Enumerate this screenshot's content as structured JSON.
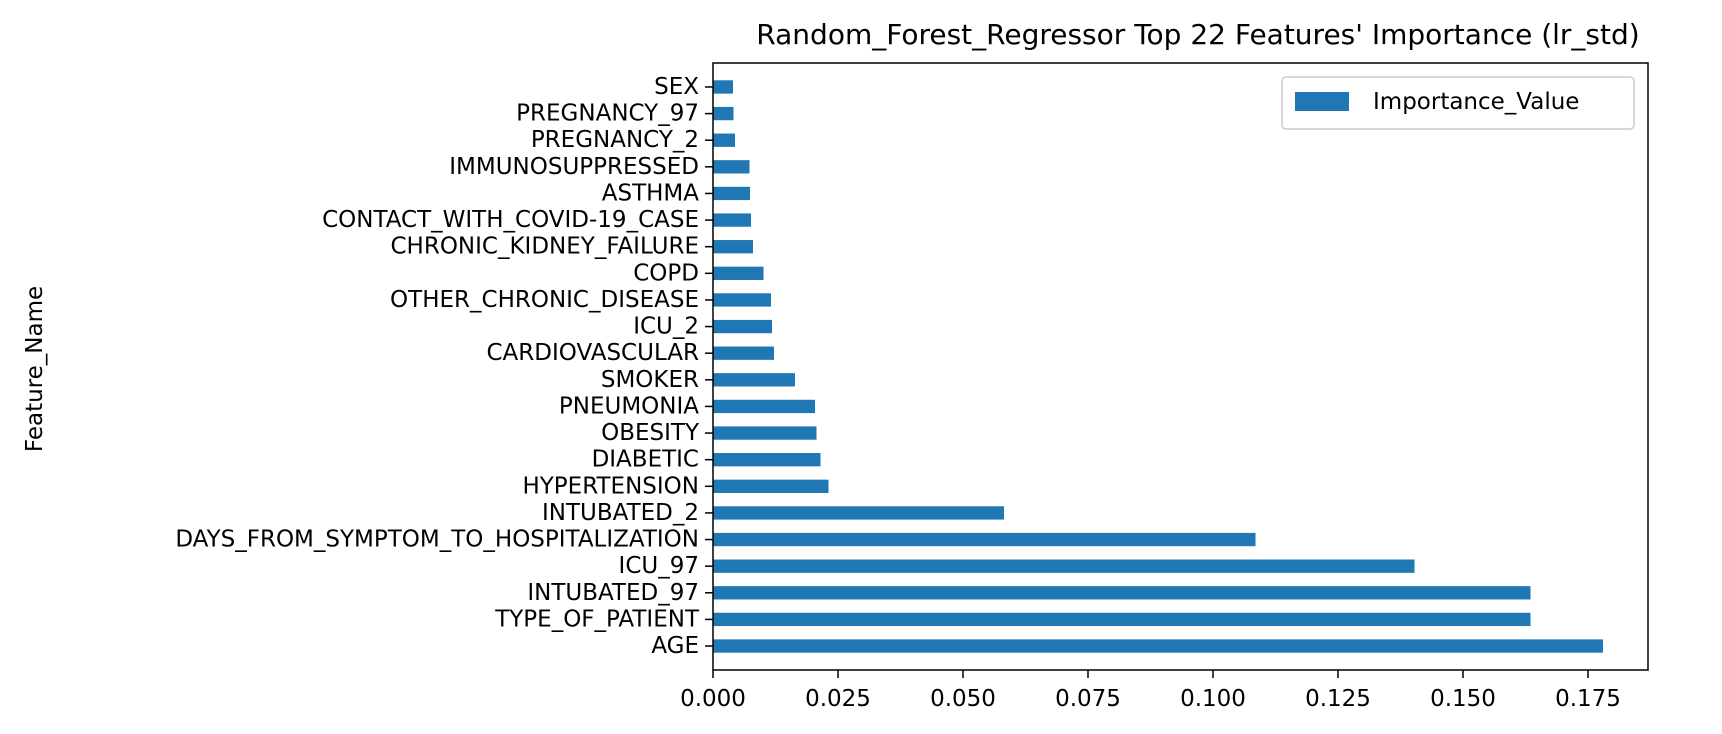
{
  "chart_data": {
    "type": "bar",
    "orientation": "horizontal",
    "title": "Random_Forest_Regressor Top 22 Features' Importance (lr_std)",
    "xlabel": "",
    "ylabel": "Feature_Name",
    "xlim": [
      0,
      0.187
    ],
    "xticks": [
      "0.000",
      "0.025",
      "0.050",
      "0.075",
      "0.100",
      "0.125",
      "0.150",
      "0.175"
    ],
    "xtick_values": [
      0,
      0.025,
      0.05,
      0.075,
      0.1,
      0.125,
      0.15,
      0.175
    ],
    "grid": false,
    "legend_position": "top-right",
    "color": "#1f77b4",
    "categories": [
      "AGE",
      "TYPE_OF_PATIENT",
      "INTUBATED_97",
      "ICU_97",
      "DAYS_FROM_SYMPTOM_TO_HOSPITALIZATION",
      "INTUBATED_2",
      "HYPERTENSION",
      "DIABETIC",
      "OBESITY",
      "PNEUMONIA",
      "SMOKER",
      "CARDIOVASCULAR",
      "ICU_2",
      "OTHER_CHRONIC_DISEASE",
      "COPD",
      "CHRONIC_KIDNEY_FAILURE",
      "CONTACT_WITH_COVID-19_CASE",
      "ASTHMA",
      "IMMUNOSUPPRESSED",
      "PREGNANCY_2",
      "PREGNANCY_97",
      "SEX"
    ],
    "series": [
      {
        "name": "Importance_Value",
        "values": [
          0.178,
          0.1635,
          0.1635,
          0.1403,
          0.1085,
          0.0582,
          0.0231,
          0.0215,
          0.0207,
          0.0204,
          0.0164,
          0.0122,
          0.0118,
          0.0116,
          0.0101,
          0.008,
          0.0076,
          0.0074,
          0.0073,
          0.0044,
          0.0041,
          0.004
        ]
      }
    ]
  }
}
